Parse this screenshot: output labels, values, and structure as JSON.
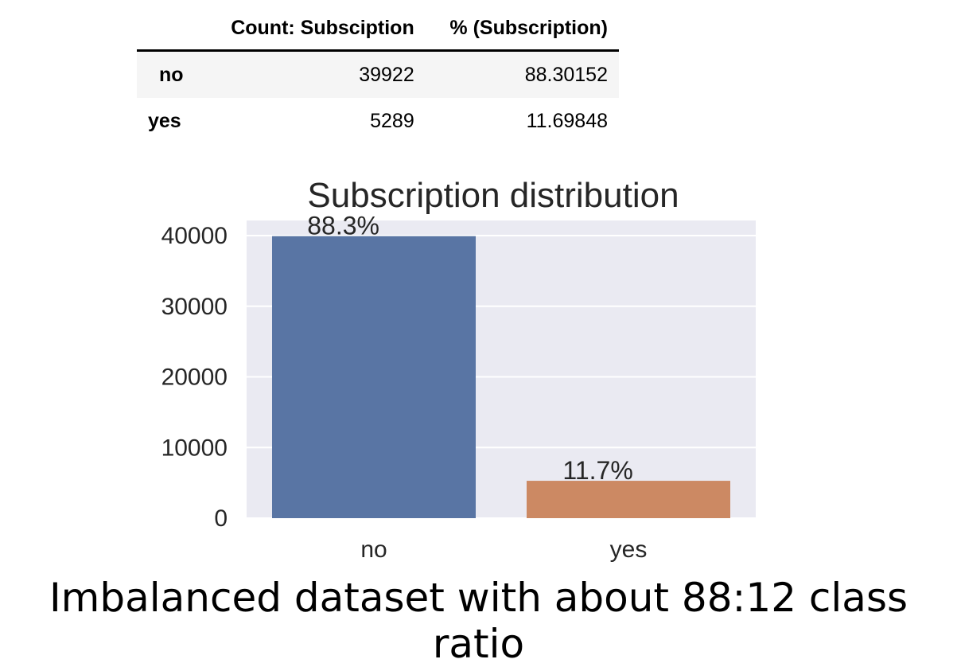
{
  "table": {
    "headers": [
      "",
      "Count: Subsciption",
      "% (Subscription)"
    ],
    "rows": [
      {
        "index": "no",
        "count": "39922",
        "percent": "88.30152"
      },
      {
        "index": "yes",
        "count": "5289",
        "percent": "11.69848"
      }
    ]
  },
  "chart_data": {
    "type": "bar",
    "title": "Subscription distribution",
    "categories": [
      "no",
      "yes"
    ],
    "values": [
      39922,
      5289
    ],
    "data_labels": [
      "88.3%",
      "11.7%"
    ],
    "colors": [
      "#5975a4",
      "#cc8963"
    ],
    "ylim": [
      0,
      40000
    ],
    "yticks": [
      0,
      10000,
      20000,
      30000,
      40000
    ],
    "xlabel": "",
    "ylabel": "",
    "grid": true,
    "background": "#eaeaf2"
  },
  "caption": "Imbalanced dataset with about 88:12 class ratio"
}
